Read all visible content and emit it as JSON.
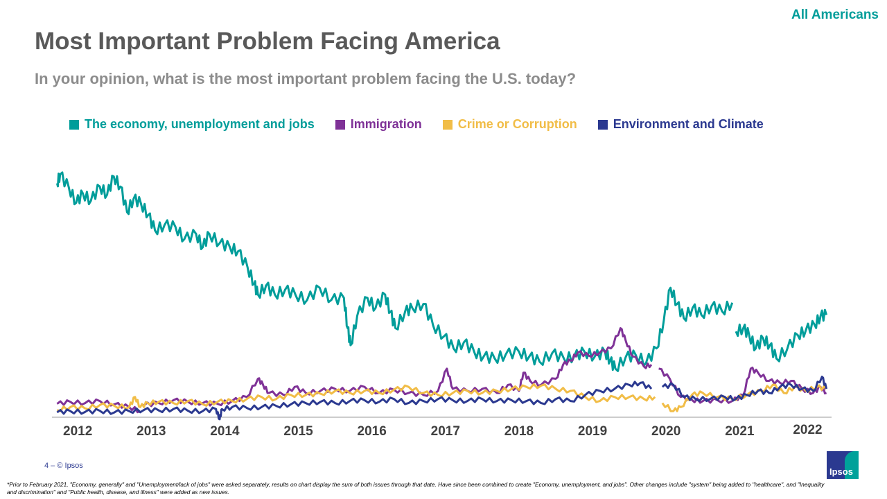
{
  "header": {
    "audience": "All Americans",
    "title": "Most Important Problem Facing America",
    "subtitle": "In your opinion, what is the most important problem facing the U.S. today?"
  },
  "footer": {
    "page": "4 –  © Ipsos",
    "footnote": "*Prior to February 2021, \"Economy, generally\" and \"Unemployment/lack of jobs\" were asked separately, results on chart display the sum of both issues through that date. Have since been combined to create \"Economy, unemployment, and jobs\". Other changes include \"system\" being added to \"healthcare\", and \"Inequality and discrimination\" and \"Public health, disease, and illness\" were added as new issues.",
    "logo_text": "Ipsos"
  },
  "chart_data": {
    "type": "line",
    "title": "Most Important Problem Facing America",
    "xlabel": "",
    "ylabel": "",
    "xlim": [
      2011.65,
      2022.25
    ],
    "ylim": [
      0,
      62
    ],
    "grid": false,
    "legend_position": "top",
    "x_ticks": [
      2012,
      2013,
      2014,
      2015,
      2016,
      2017,
      2018,
      2019,
      2020,
      2021,
      2022
    ],
    "x_tick_labels": [
      "2012",
      "2013",
      "2014",
      "2015",
      "2016",
      "2017",
      "2018",
      "2019",
      "2020",
      "2021",
      "2022"
    ],
    "series": [
      {
        "name": "The economy, unemployment and jobs",
        "color": "#009d9a",
        "points": [
          [
            2011.72,
            57.8
          ],
          [
            2011.76,
            60
          ],
          [
            2011.88,
            56.7
          ],
          [
            2011.98,
            53
          ],
          [
            2012.07,
            55.3
          ],
          [
            2012.18,
            53.5
          ],
          [
            2012.3,
            57
          ],
          [
            2012.4,
            55
          ],
          [
            2012.49,
            59.5
          ],
          [
            2012.58,
            57
          ],
          [
            2012.67,
            50.7
          ],
          [
            2012.76,
            54
          ],
          [
            2012.86,
            52.8
          ],
          [
            2012.96,
            50
          ],
          [
            2013.05,
            46.2
          ],
          [
            2013.18,
            47.5
          ],
          [
            2013.33,
            47
          ],
          [
            2013.45,
            44
          ],
          [
            2013.61,
            45.3
          ],
          [
            2013.7,
            42
          ],
          [
            2013.79,
            45.3
          ],
          [
            2013.93,
            43
          ],
          [
            2014.07,
            42
          ],
          [
            2014.18,
            41
          ],
          [
            2014.31,
            37
          ],
          [
            2014.4,
            33
          ],
          [
            2014.45,
            30.3
          ],
          [
            2014.56,
            32.5
          ],
          [
            2014.68,
            30.3
          ],
          [
            2014.82,
            31.5
          ],
          [
            2014.96,
            30.3
          ],
          [
            2015.12,
            29
          ],
          [
            2015.29,
            32
          ],
          [
            2015.45,
            29
          ],
          [
            2015.62,
            29.5
          ],
          [
            2015.67,
            22
          ],
          [
            2015.71,
            17.8
          ],
          [
            2015.8,
            25
          ],
          [
            2015.94,
            29.5
          ],
          [
            2016.05,
            27
          ],
          [
            2016.18,
            30.3
          ],
          [
            2016.25,
            26
          ],
          [
            2016.32,
            22
          ],
          [
            2016.45,
            26
          ],
          [
            2016.55,
            27
          ],
          [
            2016.7,
            28
          ],
          [
            2016.83,
            22.8
          ],
          [
            2016.98,
            20
          ],
          [
            2017.11,
            17
          ],
          [
            2017.25,
            18.5
          ],
          [
            2017.39,
            16.2
          ],
          [
            2017.52,
            15
          ],
          [
            2017.67,
            14.5
          ],
          [
            2017.82,
            15.5
          ],
          [
            2018.0,
            16.2
          ],
          [
            2018.14,
            15
          ],
          [
            2018.28,
            13.7
          ],
          [
            2018.45,
            15.8
          ],
          [
            2018.61,
            14.5
          ],
          [
            2018.75,
            15
          ],
          [
            2018.89,
            16.2
          ],
          [
            2019.03,
            15
          ],
          [
            2019.17,
            16.2
          ],
          [
            2019.24,
            14
          ],
          [
            2019.31,
            12
          ],
          [
            2019.45,
            14.8
          ],
          [
            2019.59,
            15.3
          ],
          [
            2019.73,
            13.5
          ],
          [
            2019.87,
            17
          ],
          [
            2019.97,
            24
          ],
          [
            2020.06,
            32
          ],
          [
            2020.15,
            28
          ],
          [
            2020.24,
            24.5
          ],
          [
            2020.36,
            27
          ],
          [
            2020.48,
            25.3
          ],
          [
            2020.62,
            27.5
          ],
          [
            2020.76,
            26.2
          ],
          [
            2020.9,
            28.3
          ],
          [
            2020.93,
            null
          ],
          [
            2020.95,
            21.2
          ],
          [
            2021.05,
            22
          ],
          [
            2021.13,
            20.3
          ],
          [
            2021.22,
            17
          ],
          [
            2021.32,
            19.5
          ],
          [
            2021.41,
            17.8
          ],
          [
            2021.5,
            14.5
          ],
          [
            2021.65,
            17
          ],
          [
            2021.79,
            20.3
          ],
          [
            2021.9,
            21.5
          ],
          [
            2022.02,
            22.8
          ],
          [
            2022.1,
            25
          ],
          [
            2022.18,
            25.3
          ]
        ]
      },
      {
        "name": "Immigration",
        "color": "#7f3297",
        "points": [
          [
            2011.72,
            3.3
          ],
          [
            2011.9,
            3.8
          ],
          [
            2012.1,
            3.5
          ],
          [
            2012.3,
            4
          ],
          [
            2012.5,
            3.2
          ],
          [
            2012.7,
            2.5
          ],
          [
            2012.85,
            1.5
          ],
          [
            2012.88,
            null
          ],
          [
            2012.9,
            3
          ],
          [
            2013.1,
            3.5
          ],
          [
            2013.3,
            4.2
          ],
          [
            2013.5,
            3.8
          ],
          [
            2013.7,
            3.5
          ],
          [
            2013.9,
            3.3
          ],
          [
            2014.1,
            4
          ],
          [
            2014.3,
            5
          ],
          [
            2014.45,
            9.5
          ],
          [
            2014.52,
            8
          ],
          [
            2014.6,
            6
          ],
          [
            2014.8,
            5.5
          ],
          [
            2014.95,
            7.5
          ],
          [
            2015.1,
            6
          ],
          [
            2015.3,
            6.5
          ],
          [
            2015.5,
            7
          ],
          [
            2015.7,
            6.5
          ],
          [
            2015.9,
            7.5
          ],
          [
            2016.1,
            6
          ],
          [
            2016.3,
            6.8
          ],
          [
            2016.5,
            6
          ],
          [
            2016.7,
            5.5
          ],
          [
            2016.9,
            6.5
          ],
          [
            2017.02,
            12
          ],
          [
            2017.1,
            7
          ],
          [
            2017.3,
            6.5
          ],
          [
            2017.5,
            7
          ],
          [
            2017.7,
            6
          ],
          [
            2017.85,
            8
          ],
          [
            2018.0,
            6.5
          ],
          [
            2018.06,
            11
          ],
          [
            2018.15,
            9
          ],
          [
            2018.3,
            8
          ],
          [
            2018.5,
            9.5
          ],
          [
            2018.6,
            13
          ],
          [
            2018.7,
            14
          ],
          [
            2018.8,
            16
          ],
          [
            2018.95,
            15.2
          ],
          [
            2019.1,
            16
          ],
          [
            2019.25,
            17
          ],
          [
            2019.38,
            22
          ],
          [
            2019.45,
            19
          ],
          [
            2019.55,
            15
          ],
          [
            2019.7,
            12.5
          ],
          [
            2019.8,
            13
          ],
          [
            2019.85,
            null
          ],
          [
            2019.9,
            12
          ],
          [
            2020.05,
            9.5
          ],
          [
            2020.2,
            5
          ],
          [
            2020.35,
            4.3
          ],
          [
            2020.5,
            4
          ],
          [
            2020.7,
            4.2
          ],
          [
            2020.9,
            4
          ],
          [
            2021.05,
            5.5
          ],
          [
            2021.15,
            12
          ],
          [
            2021.25,
            11
          ],
          [
            2021.4,
            9
          ],
          [
            2021.55,
            8.5
          ],
          [
            2021.7,
            9
          ],
          [
            2021.85,
            7
          ],
          [
            2022.0,
            6
          ],
          [
            2022.1,
            7.5
          ],
          [
            2022.18,
            6
          ]
        ]
      },
      {
        "name": "Crime or Corruption",
        "color": "#f1bd47",
        "points": [
          [
            2011.72,
            1.8
          ],
          [
            2011.9,
            2.5
          ],
          [
            2012.1,
            2.2
          ],
          [
            2012.3,
            3
          ],
          [
            2012.5,
            2.8
          ],
          [
            2012.7,
            2.5
          ],
          [
            2012.78,
            5
          ],
          [
            2012.85,
            2.5
          ],
          [
            2012.95,
            3.5
          ],
          [
            2013.1,
            3.8
          ],
          [
            2013.3,
            3.5
          ],
          [
            2013.5,
            4
          ],
          [
            2013.7,
            3.2
          ],
          [
            2013.9,
            3.8
          ],
          [
            2014.1,
            4
          ],
          [
            2014.3,
            4.5
          ],
          [
            2014.5,
            5
          ],
          [
            2014.7,
            4.5
          ],
          [
            2014.9,
            5.5
          ],
          [
            2015.1,
            5.5
          ],
          [
            2015.3,
            5.8
          ],
          [
            2015.5,
            6.5
          ],
          [
            2015.7,
            6
          ],
          [
            2015.9,
            6.5
          ],
          [
            2016.1,
            6
          ],
          [
            2016.3,
            6.8
          ],
          [
            2016.5,
            7.5
          ],
          [
            2016.7,
            6
          ],
          [
            2016.9,
            5.5
          ],
          [
            2017.1,
            6
          ],
          [
            2017.3,
            6.5
          ],
          [
            2017.5,
            6
          ],
          [
            2017.7,
            6.5
          ],
          [
            2017.9,
            7
          ],
          [
            2018.1,
            7.5
          ],
          [
            2018.3,
            7.8
          ],
          [
            2018.5,
            7
          ],
          [
            2018.7,
            6.5
          ],
          [
            2018.9,
            5
          ],
          [
            2019.1,
            4
          ],
          [
            2019.3,
            5
          ],
          [
            2019.5,
            5
          ],
          [
            2019.7,
            4.5
          ],
          [
            2019.85,
            5
          ],
          [
            2019.9,
            null
          ],
          [
            2019.95,
            3.5
          ],
          [
            2020.1,
            1.5
          ],
          [
            2020.2,
            2.5
          ],
          [
            2020.35,
            5.5
          ],
          [
            2020.5,
            6
          ],
          [
            2020.7,
            5
          ],
          [
            2020.9,
            4.5
          ],
          [
            2021.1,
            5.5
          ],
          [
            2021.3,
            6.5
          ],
          [
            2021.45,
            8
          ],
          [
            2021.6,
            6
          ],
          [
            2021.75,
            7.5
          ],
          [
            2021.9,
            6.5
          ],
          [
            2022.05,
            7.5
          ],
          [
            2022.18,
            7
          ]
        ]
      },
      {
        "name": "Environment and Climate",
        "color": "#2b3990",
        "points": [
          [
            2011.72,
            1.2
          ],
          [
            2011.9,
            1.5
          ],
          [
            2012.1,
            1.3
          ],
          [
            2012.3,
            1.6
          ],
          [
            2012.5,
            1.2
          ],
          [
            2012.7,
            1.5
          ],
          [
            2012.9,
            1.8
          ],
          [
            2013.1,
            1.7
          ],
          [
            2013.3,
            2
          ],
          [
            2013.5,
            1.6
          ],
          [
            2013.7,
            1.5
          ],
          [
            2013.88,
            2
          ],
          [
            2013.93,
            -0.5
          ],
          [
            2013.96,
            2
          ],
          [
            2014.1,
            2.5
          ],
          [
            2014.3,
            2.3
          ],
          [
            2014.5,
            2.5
          ],
          [
            2014.7,
            2.8
          ],
          [
            2014.9,
            3.2
          ],
          [
            2015.1,
            3.5
          ],
          [
            2015.3,
            3.8
          ],
          [
            2015.5,
            3.5
          ],
          [
            2015.7,
            4
          ],
          [
            2015.9,
            4.2
          ],
          [
            2016.1,
            3.8
          ],
          [
            2016.3,
            4.5
          ],
          [
            2016.5,
            3.5
          ],
          [
            2016.7,
            4
          ],
          [
            2016.9,
            4.5
          ],
          [
            2017.1,
            4.2
          ],
          [
            2017.3,
            4
          ],
          [
            2017.5,
            4.5
          ],
          [
            2017.7,
            4
          ],
          [
            2017.9,
            4.2
          ],
          [
            2018.1,
            4
          ],
          [
            2018.3,
            3.5
          ],
          [
            2018.5,
            4.5
          ],
          [
            2018.7,
            4
          ],
          [
            2018.9,
            5.5
          ],
          [
            2019.1,
            6.5
          ],
          [
            2019.3,
            7
          ],
          [
            2019.5,
            8
          ],
          [
            2019.65,
            8.5
          ],
          [
            2019.8,
            7
          ],
          [
            2019.9,
            null
          ],
          [
            2019.95,
            7.5
          ],
          [
            2020.1,
            8
          ],
          [
            2020.25,
            5
          ],
          [
            2020.4,
            4.5
          ],
          [
            2020.6,
            4.5
          ],
          [
            2020.8,
            5
          ],
          [
            2020.95,
            4.5
          ],
          [
            2021.1,
            5.5
          ],
          [
            2021.25,
            6.5
          ],
          [
            2021.4,
            6
          ],
          [
            2021.55,
            7.5
          ],
          [
            2021.7,
            8
          ],
          [
            2021.85,
            7
          ],
          [
            2022.0,
            6.5
          ],
          [
            2022.12,
            10
          ],
          [
            2022.18,
            7
          ]
        ]
      }
    ]
  }
}
